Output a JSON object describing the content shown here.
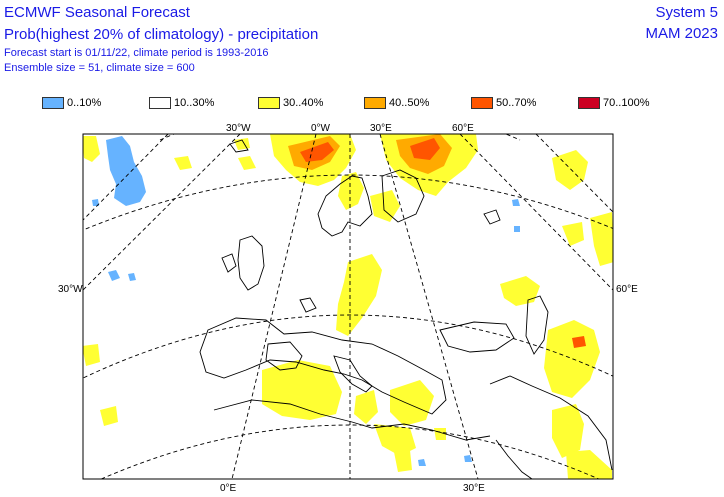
{
  "header": {
    "title": "ECMWF Seasonal Forecast",
    "subtitle": "Prob(highest 20% of climatology) - precipitation",
    "forecast_info": "Forecast start is 01/11/22, climate period is 1993-2016",
    "ensemble_info": "Ensemble size = 51, climate size = 600",
    "system": "System 5",
    "season": "MAM 2023"
  },
  "legend": [
    {
      "label": "0..10%",
      "color": "#66b3ff"
    },
    {
      "label": "10..30%",
      "color": "#ffffff"
    },
    {
      "label": "30..40%",
      "color": "#ffff33"
    },
    {
      "label": "40..50%",
      "color": "#ffaa00"
    },
    {
      "label": "50..70%",
      "color": "#ff5500"
    },
    {
      "label": "70..100%",
      "color": "#cc0022"
    }
  ],
  "map_labels": {
    "top_30w": "30°W",
    "top_0": "0°W",
    "top_30e": "30°E",
    "top_60e": "60°E",
    "left_30w": "30°W",
    "right_60e": "60°E",
    "bottom_0": "0°E",
    "bottom_30e": "30°E"
  }
}
